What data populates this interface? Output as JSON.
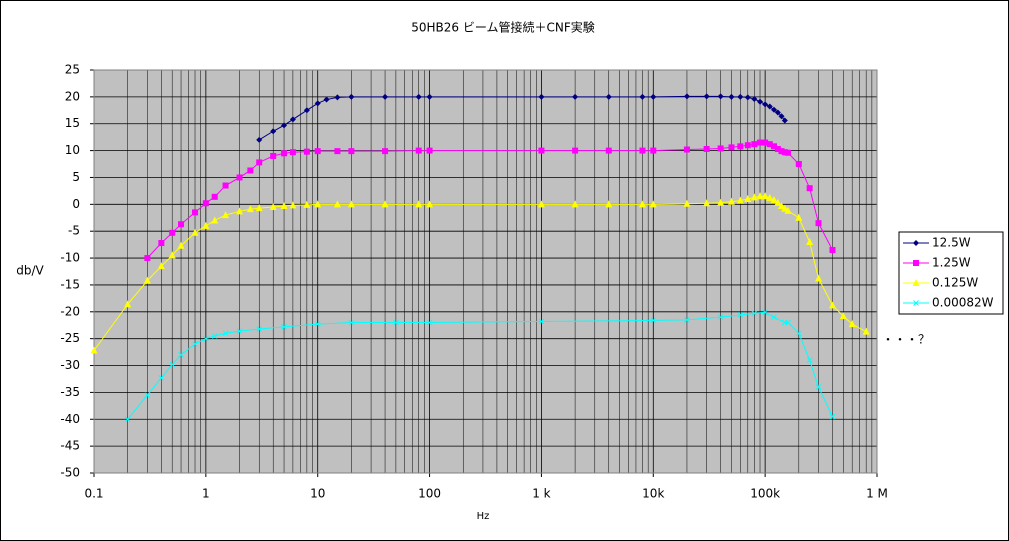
{
  "chart_data": {
    "type": "line",
    "title": "50HB26 ビーム管接続＋CNF実験",
    "x_label": "Hz",
    "y_label": "db/V",
    "log_x": true,
    "grid": true,
    "legend": "right",
    "annotation": "・・・？",
    "xlim": [
      0.1,
      1000000
    ],
    "ylim": [
      -50,
      25
    ],
    "xticks": [
      0.1,
      1,
      10,
      100,
      {
        "value": 1000,
        "label": "1 k"
      },
      {
        "value": 10000,
        "label": "10k"
      },
      {
        "value": 100000,
        "label": "100k"
      },
      {
        "value": 1000000,
        "label": "1 M"
      }
    ],
    "yticks": [
      -50,
      -45,
      -40,
      -35,
      -30,
      -25,
      -20,
      -15,
      -10,
      -5,
      0,
      5,
      10,
      15,
      20,
      25
    ],
    "series": [
      {
        "name": "12.5W",
        "color": "#000080",
        "marker": "diamond",
        "x": [
          3,
          4,
          5,
          6,
          8,
          10,
          12,
          15,
          20,
          40,
          80,
          100,
          1000,
          2000,
          4000,
          8000,
          10000,
          20000,
          30000,
          40000,
          50000,
          60000,
          70000,
          80000,
          90000,
          100000,
          110000,
          120000,
          130000,
          140000,
          150000
        ],
        "values": [
          12,
          13.6,
          14.7,
          15.8,
          17.5,
          18.8,
          19.5,
          19.9,
          20,
          20,
          20,
          20,
          20,
          20,
          20,
          20,
          20,
          20.1,
          20.1,
          20.1,
          20,
          20,
          19.9,
          19.6,
          19.1,
          18.6,
          18.2,
          17.6,
          17.1,
          16.4,
          15.6
        ]
      },
      {
        "name": "1.25W",
        "color": "#ff00ff",
        "marker": "square",
        "x": [
          0.3,
          0.4,
          0.5,
          0.6,
          0.8,
          1,
          1.2,
          1.5,
          2,
          2.5,
          3,
          4,
          5,
          6,
          8,
          10,
          15,
          20,
          40,
          80,
          100,
          1000,
          2000,
          4000,
          8000,
          10000,
          20000,
          30000,
          40000,
          50000,
          60000,
          70000,
          80000,
          90000,
          100000,
          110000,
          120000,
          130000,
          140000,
          150000,
          160000,
          200000,
          250000,
          300000,
          400000
        ],
        "values": [
          -10,
          -7.2,
          -5.3,
          -3.7,
          -1.5,
          0.2,
          1.4,
          3.5,
          5,
          6.3,
          7.8,
          9,
          9.5,
          9.7,
          9.8,
          9.9,
          9.9,
          9.9,
          9.9,
          10,
          10,
          10,
          10,
          10,
          10,
          10,
          10.2,
          10.3,
          10.4,
          10.6,
          10.8,
          11,
          11.2,
          11.5,
          11.5,
          11.2,
          10.8,
          10.3,
          9.9,
          9.7,
          9.6,
          7.5,
          3,
          -3.5,
          -8.5
        ]
      },
      {
        "name": "0.125W",
        "color": "#ffff00",
        "marker": "triangle",
        "x": [
          0.1,
          0.2,
          0.3,
          0.4,
          0.5,
          0.6,
          0.8,
          1,
          1.2,
          1.5,
          2,
          2.5,
          3,
          4,
          5,
          6,
          8,
          10,
          15,
          20,
          40,
          80,
          100,
          1000,
          2000,
          4000,
          8000,
          10000,
          20000,
          30000,
          40000,
          50000,
          60000,
          70000,
          80000,
          90000,
          100000,
          110000,
          120000,
          130000,
          140000,
          150000,
          160000,
          200000,
          250000,
          300000,
          400000,
          500000,
          600000,
          800000
        ],
        "values": [
          -27.2,
          -18.6,
          -14.2,
          -11.5,
          -9.5,
          -7.7,
          -5.3,
          -4,
          -3,
          -2,
          -1.3,
          -0.9,
          -0.7,
          -0.5,
          -0.3,
          -0.2,
          -0.1,
          0,
          0,
          0,
          0,
          0,
          0,
          0,
          0,
          0,
          0,
          0,
          0.1,
          0.2,
          0.3,
          0.5,
          0.7,
          1,
          1.3,
          1.5,
          1.5,
          1.2,
          0.8,
          0.3,
          -0.3,
          -0.8,
          -1.2,
          -2.5,
          -7,
          -13.8,
          -18.8,
          -20.8,
          -22.3,
          -23.7
        ]
      },
      {
        "name": "0.00082W",
        "color": "#00ffff",
        "marker": "x",
        "x": [
          0.2,
          0.3,
          0.4,
          0.5,
          0.6,
          0.8,
          1,
          1.2,
          1.5,
          2,
          3,
          5,
          10,
          20,
          50,
          100,
          1000,
          10000,
          20000,
          40000,
          60000,
          80000,
          100000,
          120000,
          150000,
          160000,
          200000,
          250000,
          300000,
          400000
        ],
        "values": [
          -40,
          -35.5,
          -32.3,
          -29.8,
          -28,
          -26,
          -25,
          -24.5,
          -24,
          -23.6,
          -23.2,
          -22.8,
          -22.3,
          -22,
          -22,
          -22,
          -21.8,
          -21.6,
          -21.5,
          -21,
          -20.6,
          -20.3,
          -20.1,
          -21,
          -22,
          -22,
          -24,
          -29,
          -34,
          -39.5
        ]
      }
    ]
  }
}
